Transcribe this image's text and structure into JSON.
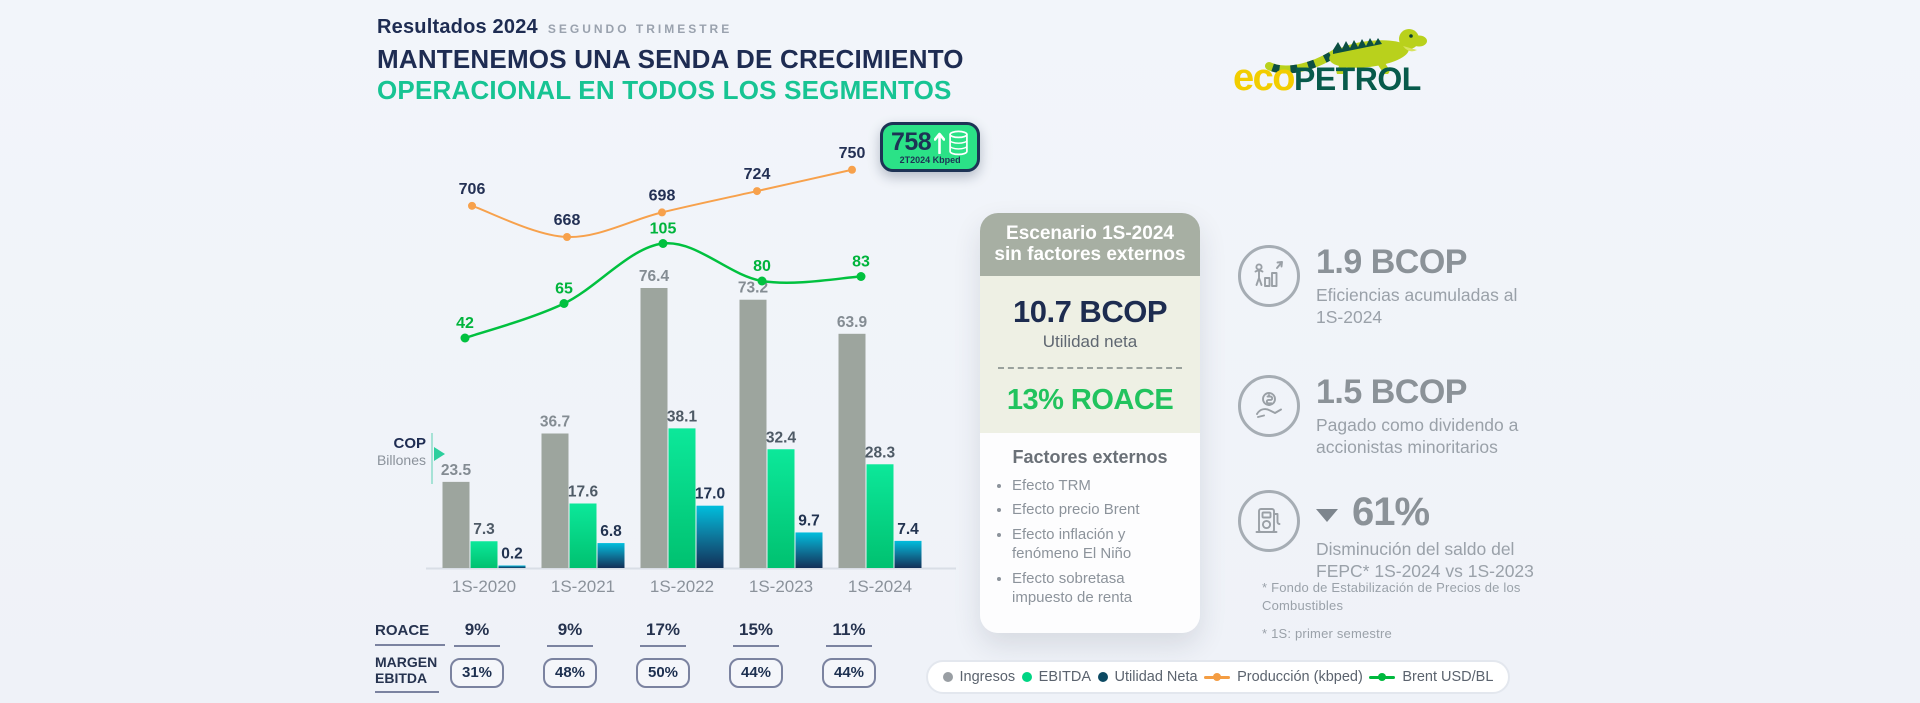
{
  "header": {
    "kicker_bold": "Resultados 2024",
    "kicker_light": "SEGUNDO TRIMESTRE",
    "title_line1": "MANTENEMOS UNA SENDA DE CRECIMIENTO",
    "title_line2": "OPERACIONAL EN TODOS LOS SEGMENTOS",
    "title_color": "#1e2c52",
    "accent_color": "#17c493"
  },
  "logo": {
    "eco": "eco",
    "petrol": "PETROL",
    "eco_color": "#f2cd00",
    "petrol_color": "#075a4b",
    "iguana_icon": "iguana-icon"
  },
  "badge": {
    "value": "758",
    "caption": "2T2024 Kbped",
    "arrow_icon": "arrow-up-icon",
    "barrel_icon": "oil-barrel-icon",
    "bg_color": "#2be287",
    "border_color": "#1d3355"
  },
  "chart_data": {
    "type": "combo_bar_line",
    "categories": [
      "1S-2020",
      "1S-2021",
      "1S-2022",
      "1S-2023",
      "1S-2024"
    ],
    "unit_label": {
      "line1": "COP",
      "line2": "Billones"
    },
    "bar_series": [
      {
        "name": "Ingresos",
        "values": [
          23.5,
          36.7,
          76.4,
          73.2,
          63.9
        ],
        "color": "#9da59e",
        "label_color": "#848c93"
      },
      {
        "name": "EBITDA",
        "values": [
          7.3,
          17.6,
          38.1,
          32.4,
          28.3
        ],
        "color_top": "#0ce89a",
        "color_bottom": "#00c170",
        "label_color": "#4e5a66"
      },
      {
        "name": "Utilidad Neta",
        "values": [
          0.2,
          6.8,
          17.0,
          9.7,
          7.4
        ],
        "color_top": "#00bedd",
        "color_mid": "#0d7da1",
        "color_bottom": "#123058",
        "label_color": "#223350"
      }
    ],
    "line_series": [
      {
        "name": "Producción (kbped)",
        "values": [
          706,
          668,
          698,
          724,
          750
        ],
        "color": "#f7a14c",
        "label_color": "#233054"
      },
      {
        "name": "Brent USD/BL",
        "values": [
          42,
          65,
          105,
          80,
          83
        ],
        "color": "#01c13f",
        "label_color": "#00b43c"
      }
    ],
    "legend_position": "bottom",
    "grid": false
  },
  "metrics_rows": [
    {
      "label": "ROACE",
      "style": "underline",
      "values": [
        "9%",
        "9%",
        "17%",
        "15%",
        "11%"
      ]
    },
    {
      "label": "MARGEN EBITDA",
      "style": "boxed",
      "values": [
        "31%",
        "48%",
        "50%",
        "44%",
        "44%"
      ]
    }
  ],
  "scenario_panel": {
    "header": "Escenario 1S-2024 sin factores externos",
    "big_value": "10.7 BCOP",
    "big_label": "Utilidad neta",
    "roace": "13% ROACE",
    "factors_title": "Factores externos",
    "factors": [
      "Efecto TRM",
      "Efecto precio Brent",
      "Efecto inflación y fenómeno El Niño",
      "Efecto sobretasa impuesto de renta"
    ]
  },
  "highlights": [
    {
      "icon": "growth-chart-icon",
      "value": "1.9 BCOP",
      "text": "Eficiencias acumuladas al 1S-2024"
    },
    {
      "icon": "hand-coin-icon",
      "value": "1.5 BCOP",
      "text": "Pagado como dividendo a accionistas minoritarios"
    },
    {
      "icon": "fuel-pump-icon",
      "arrow": "▼",
      "value": "61%",
      "text": "Disminución del saldo del FEPC* 1S-2024 vs 1S-2023"
    }
  ],
  "footnotes": [
    "* Fondo de Estabilización de Precios de los Combustibles",
    "* 1S: primer semestre"
  ],
  "legend": [
    {
      "label": "Ingresos",
      "color": "#999ea3",
      "type": "dot"
    },
    {
      "label": "EBITDA",
      "color": "#00d584",
      "type": "dot"
    },
    {
      "label": "Utilidad Neta",
      "color": "#0c4a63",
      "type": "dot"
    },
    {
      "label": "Producción (kbped)",
      "color": "#f49d43",
      "type": "line"
    },
    {
      "label": "Brent USD/BL",
      "color": "#00b93e",
      "type": "line"
    }
  ]
}
